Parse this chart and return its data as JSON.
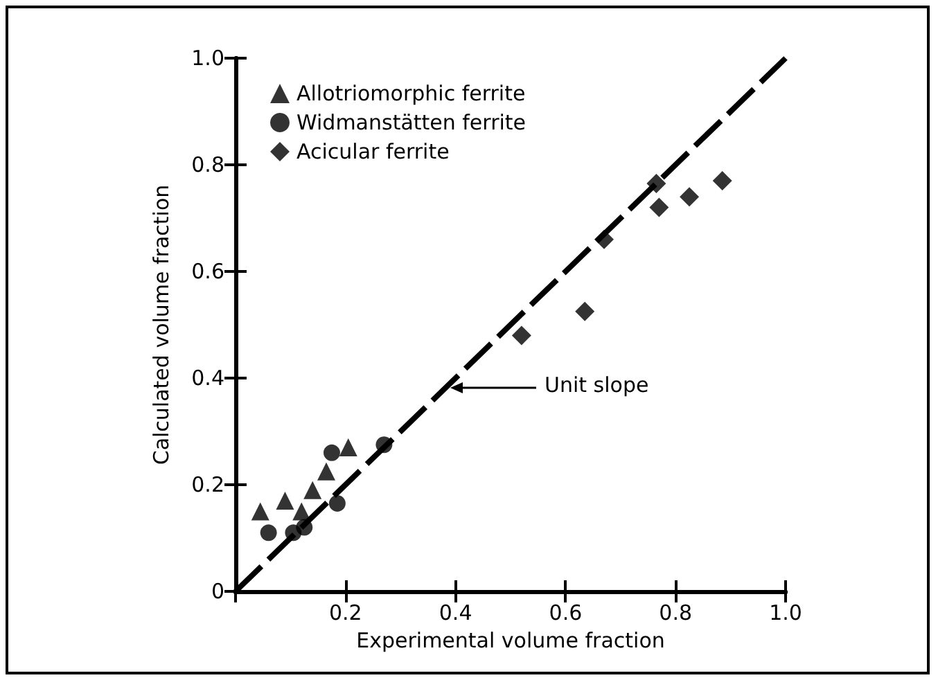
{
  "chart_data": {
    "type": "scatter",
    "xlabel": "Experimental volume fraction",
    "ylabel": "Calculated volume fraction",
    "xlim": [
      0,
      1
    ],
    "ylim": [
      0,
      1
    ],
    "xticks": [
      {
        "value": 0,
        "label": null
      },
      0.2,
      0.4,
      0.6,
      0.8,
      {
        "value": 1,
        "label": "1.0"
      }
    ],
    "yticks": [
      0,
      0.2,
      0.4,
      0.6,
      0.8,
      {
        "value": 1,
        "label": "1.0"
      }
    ],
    "grid": false,
    "legend": "top left",
    "annotations": [
      "Unit slope"
    ],
    "series": [
      {
        "name": "Allotriomorphic ferrite",
        "color": "#000000",
        "marker": "triangle",
        "x": [
          0.045,
          0.09,
          0.12,
          0.14,
          0.165,
          0.205
        ],
        "values": [
          0.15,
          0.17,
          0.15,
          0.19,
          0.225,
          0.27
        ]
      },
      {
        "name": "Widmanstätten ferrite",
        "color": "#000000",
        "marker": "circle",
        "x": [
          0.06,
          0.105,
          0.125,
          0.185,
          0.175,
          0.27
        ],
        "values": [
          0.11,
          0.11,
          0.12,
          0.165,
          0.26,
          0.275
        ]
      },
      {
        "name": "Acicular ferrite",
        "color": "#000000",
        "marker": "diamond",
        "x": [
          0.52,
          0.635,
          0.67,
          0.765,
          0.77,
          0.825,
          0.885
        ],
        "values": [
          0.48,
          0.525,
          0.66,
          0.765,
          0.72,
          0.74,
          0.77
        ]
      },
      {
        "type": "line",
        "color": "#000000",
        "marker": "none",
        "line_style": "dashed",
        "x": [
          0,
          1
        ],
        "values": [
          0,
          1
        ]
      }
    ]
  }
}
